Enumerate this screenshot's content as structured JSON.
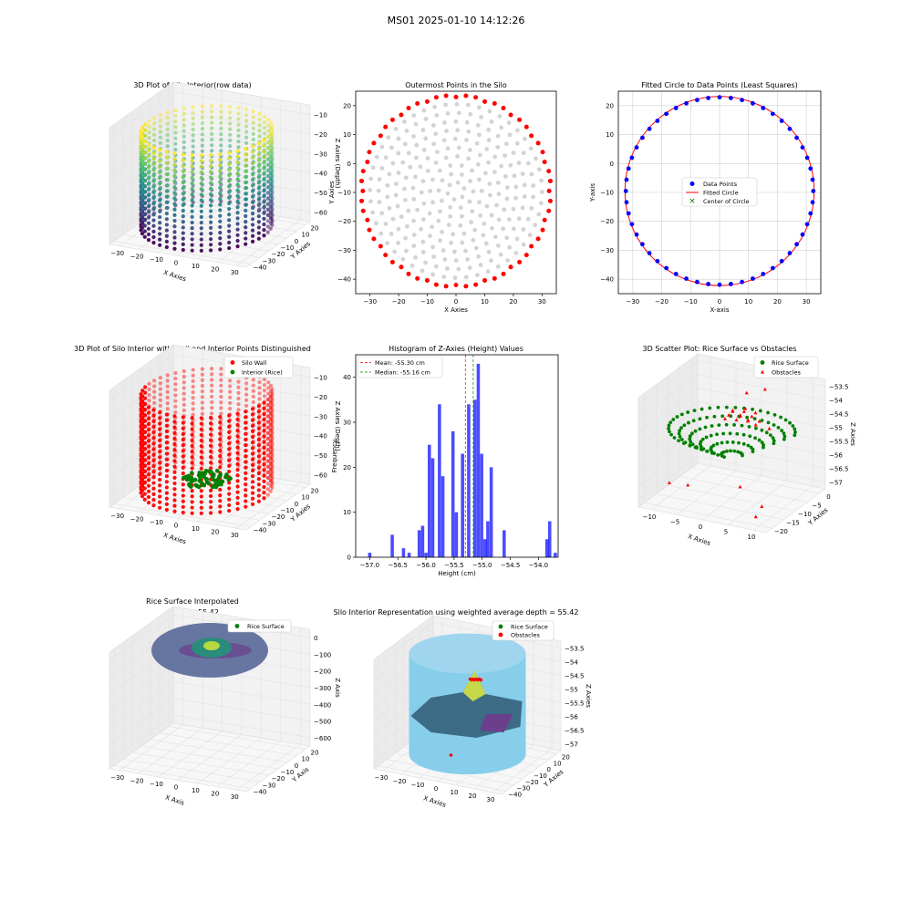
{
  "suptitle": "MS01 2025-01-10 14:12:26",
  "colors": {
    "wall": "#ff0000",
    "rice": "#008000",
    "blue": "#0000ff",
    "hist": "#0000ff",
    "gray": "#d3d3d3",
    "sky": "#87ceeb",
    "obstacle": "#ff0000"
  },
  "chart_data": [
    {
      "type": "scatter3d",
      "title": "3D Plot of Silo Interior(row data)",
      "xlabel": "X Axies",
      "ylabel": "Y Axies",
      "zlabel": "Z Axies (Depth)",
      "xticks": [
        -30,
        -20,
        -10,
        0,
        10,
        20,
        30
      ],
      "yticks": [
        20,
        10,
        0,
        -10,
        -20,
        -30,
        -40
      ],
      "zticks": [
        -10,
        -20,
        -30,
        -40,
        -50,
        -60
      ],
      "center": [
        0,
        -9.5
      ],
      "radius": 32,
      "zrange": [
        -66,
        -3
      ],
      "colormap": "viridis"
    },
    {
      "type": "scatter",
      "title": "Outermost Points in the Silo",
      "xlabel": "X Axies",
      "ylabel": "Y Axies",
      "xlim": [
        -35,
        35
      ],
      "ylim": [
        -45,
        25
      ],
      "xticks": [
        -30,
        -20,
        -10,
        0,
        10,
        20,
        30
      ],
      "yticks": [
        20,
        10,
        0,
        -10,
        -20,
        -30,
        -40
      ],
      "center": [
        0,
        -9.5
      ],
      "radius": 32.5,
      "series": [
        {
          "role": "outermost",
          "count": 60
        },
        {
          "role": "interior-rings",
          "rings": [
            3,
            6,
            9,
            12,
            15,
            18,
            21,
            24,
            27,
            30
          ]
        }
      ]
    },
    {
      "type": "scatter",
      "title": "Fitted Circle to Data Points (Least Squares)",
      "xlabel": "X-axis",
      "ylabel": "Y-axis",
      "xlim": [
        -35,
        35
      ],
      "ylim": [
        -45,
        25
      ],
      "xticks": [
        -30,
        -20,
        -10,
        0,
        10,
        20,
        30
      ],
      "yticks": [
        20,
        10,
        0,
        -10,
        -20,
        -30,
        -40
      ],
      "grid": true,
      "legend": {
        "items": [
          "Data Points",
          "Fitted Circle",
          "Center of Circle"
        ],
        "position": "center"
      },
      "fitted_circle": {
        "center": [
          0,
          -9.5
        ],
        "radius": 32.7
      }
    },
    {
      "type": "scatter3d",
      "title": "3D Plot of Silo Interior with Wall and Interior Points Distinguished",
      "xlabel": "X Axies",
      "ylabel": "Y Axies",
      "zlabel": "Z Axies (Depth)",
      "xticks": [
        -30,
        -20,
        -10,
        0,
        10,
        20,
        30
      ],
      "yticks": [
        20,
        10,
        0,
        -10,
        -20,
        -30,
        -40
      ],
      "zticks": [
        -10,
        -20,
        -30,
        -40,
        -50,
        -60
      ],
      "legend": {
        "items": [
          "Silo Wall",
          "Interior (Rice)"
        ],
        "position": "upper right"
      }
    },
    {
      "type": "bar",
      "title": "Histogram of Z-Axies (Height) Values",
      "xlabel": "Height (cm)",
      "ylabel": "Frequency",
      "xlim": [
        -57.25,
        -53.65
      ],
      "ylim": [
        0,
        45
      ],
      "xticks": [
        -57.0,
        -56.5,
        -56.0,
        -55.5,
        -55.0,
        -54.5,
        -54.0
      ],
      "yticks": [
        0,
        10,
        20,
        30,
        40
      ],
      "bin_width": 0.058,
      "bins": [
        [
          -57.0,
          1
        ],
        [
          -56.6,
          5
        ],
        [
          -56.4,
          2
        ],
        [
          -56.3,
          1
        ],
        [
          -56.12,
          6
        ],
        [
          -56.06,
          7
        ],
        [
          -56.0,
          1
        ],
        [
          -55.94,
          25
        ],
        [
          -55.88,
          22
        ],
        [
          -55.76,
          34
        ],
        [
          -55.7,
          18
        ],
        [
          -55.52,
          28
        ],
        [
          -55.46,
          10
        ],
        [
          -55.35,
          23
        ],
        [
          -55.24,
          34
        ],
        [
          -55.13,
          35
        ],
        [
          -55.07,
          43
        ],
        [
          -55.01,
          23
        ],
        [
          -54.95,
          4
        ],
        [
          -54.9,
          8
        ],
        [
          -54.84,
          20
        ],
        [
          -54.61,
          6
        ],
        [
          -53.85,
          4
        ],
        [
          -53.8,
          8
        ],
        [
          -53.7,
          1
        ]
      ],
      "mean": -55.3,
      "median": -55.16,
      "legend": {
        "items": [
          "Mean: -55.30 cm",
          "Median: -55.16 cm"
        ],
        "position": "upper left"
      }
    },
    {
      "type": "scatter3d",
      "title": "3D Scatter Plot: Rice Surface vs Obstacles",
      "xlabel": "X Axies",
      "ylabel": "Y Axies",
      "zlabel": "Z Axies",
      "xticks": [
        -10,
        -5,
        0,
        5,
        10
      ],
      "yticks": [
        0,
        -5,
        -10,
        -15,
        -20
      ],
      "zticks": [
        -53.5,
        -54.0,
        -54.5,
        -55.0,
        -55.5,
        -56.0,
        -56.5,
        -57.0
      ],
      "legend": {
        "items": [
          "Rice Surface",
          "Obstacles"
        ],
        "position": "upper right"
      }
    },
    {
      "type": "surface3d",
      "title": "Rice Surface Interpolated",
      "subtitle": "depth = 55.42",
      "xlabel": "X Axis",
      "ylabel": "Y Axis",
      "zlabel": "Z Axis",
      "xticks": [
        -30,
        -20,
        -10,
        0,
        10,
        20,
        30
      ],
      "yticks": [
        20,
        10,
        0,
        -10,
        -20,
        -30,
        -40
      ],
      "zticks": [
        0,
        -100,
        -200,
        -300,
        -400,
        -500,
        -600
      ],
      "legend": {
        "items": [
          "Rice Surface"
        ],
        "position": "upper right"
      }
    },
    {
      "type": "surface3d",
      "title": "Silo Interior Representation using weighted average depth = 55.42",
      "xlabel": "X Axies",
      "ylabel": "Y Axies",
      "zlabel": "Z Axies",
      "xticks": [
        -30,
        -20,
        -10,
        0,
        10,
        20,
        30
      ],
      "yticks": [
        20,
        10,
        0,
        -10,
        -20,
        -30,
        -40
      ],
      "zticks": [
        -53.5,
        -54.0,
        -54.5,
        -55.0,
        -55.5,
        -56.0,
        -56.5,
        -57.0
      ],
      "legend": {
        "items": [
          "Rice Surface",
          "Obstacles"
        ],
        "position": "upper right"
      }
    }
  ]
}
